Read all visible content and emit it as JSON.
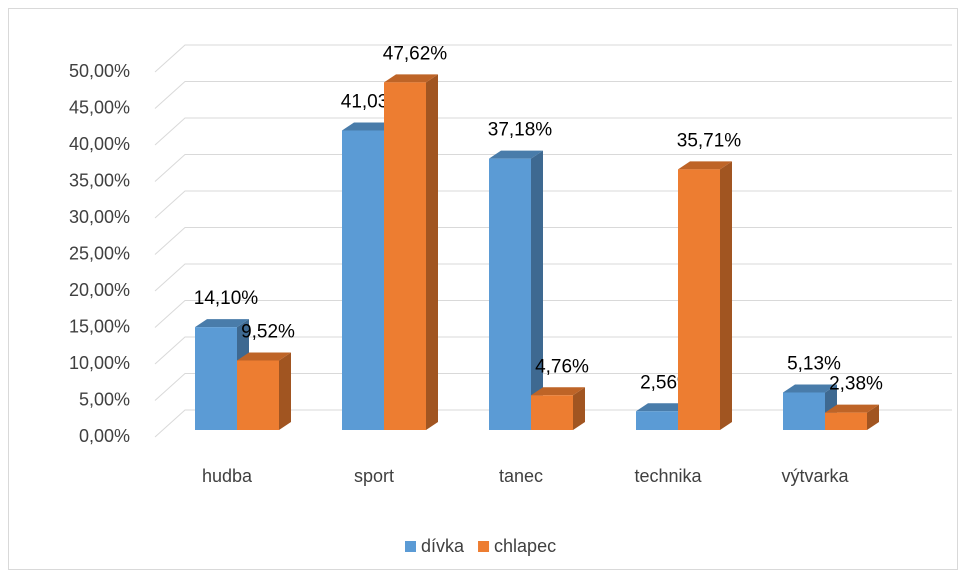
{
  "chart_data": {
    "type": "bar3d",
    "categories": [
      "hudba",
      "sport",
      "tanec",
      "technika",
      "výtvarka"
    ],
    "series": [
      {
        "name": "dívka",
        "color": "#5b9bd5",
        "values": [
          14.1,
          41.03,
          37.18,
          2.56,
          5.13
        ],
        "value_labels": [
          "14,10%",
          "41,03%",
          "37,18%",
          "2,56%",
          "5,13%"
        ]
      },
      {
        "name": "chlapec",
        "color": "#ed7d31",
        "values": [
          9.52,
          47.62,
          4.76,
          35.71,
          2.38
        ],
        "value_labels": [
          "9,52%",
          "47,62%",
          "4,76%",
          "35,71%",
          "2,38%"
        ]
      }
    ],
    "ylim": [
      0,
      50
    ],
    "yticks": [
      {
        "value": 0,
        "label": "0,00%"
      },
      {
        "value": 5,
        "label": "5,00%"
      },
      {
        "value": 10,
        "label": "10,00%"
      },
      {
        "value": 15,
        "label": "15,00%"
      },
      {
        "value": 20,
        "label": "20,00%"
      },
      {
        "value": 25,
        "label": "25,00%"
      },
      {
        "value": 30,
        "label": "30,00%"
      },
      {
        "value": 35,
        "label": "35,00%"
      },
      {
        "value": 40,
        "label": "40,00%"
      },
      {
        "value": 45,
        "label": "45,00%"
      },
      {
        "value": 50,
        "label": "50,00%"
      }
    ],
    "grid": true,
    "legend": "bottom"
  }
}
